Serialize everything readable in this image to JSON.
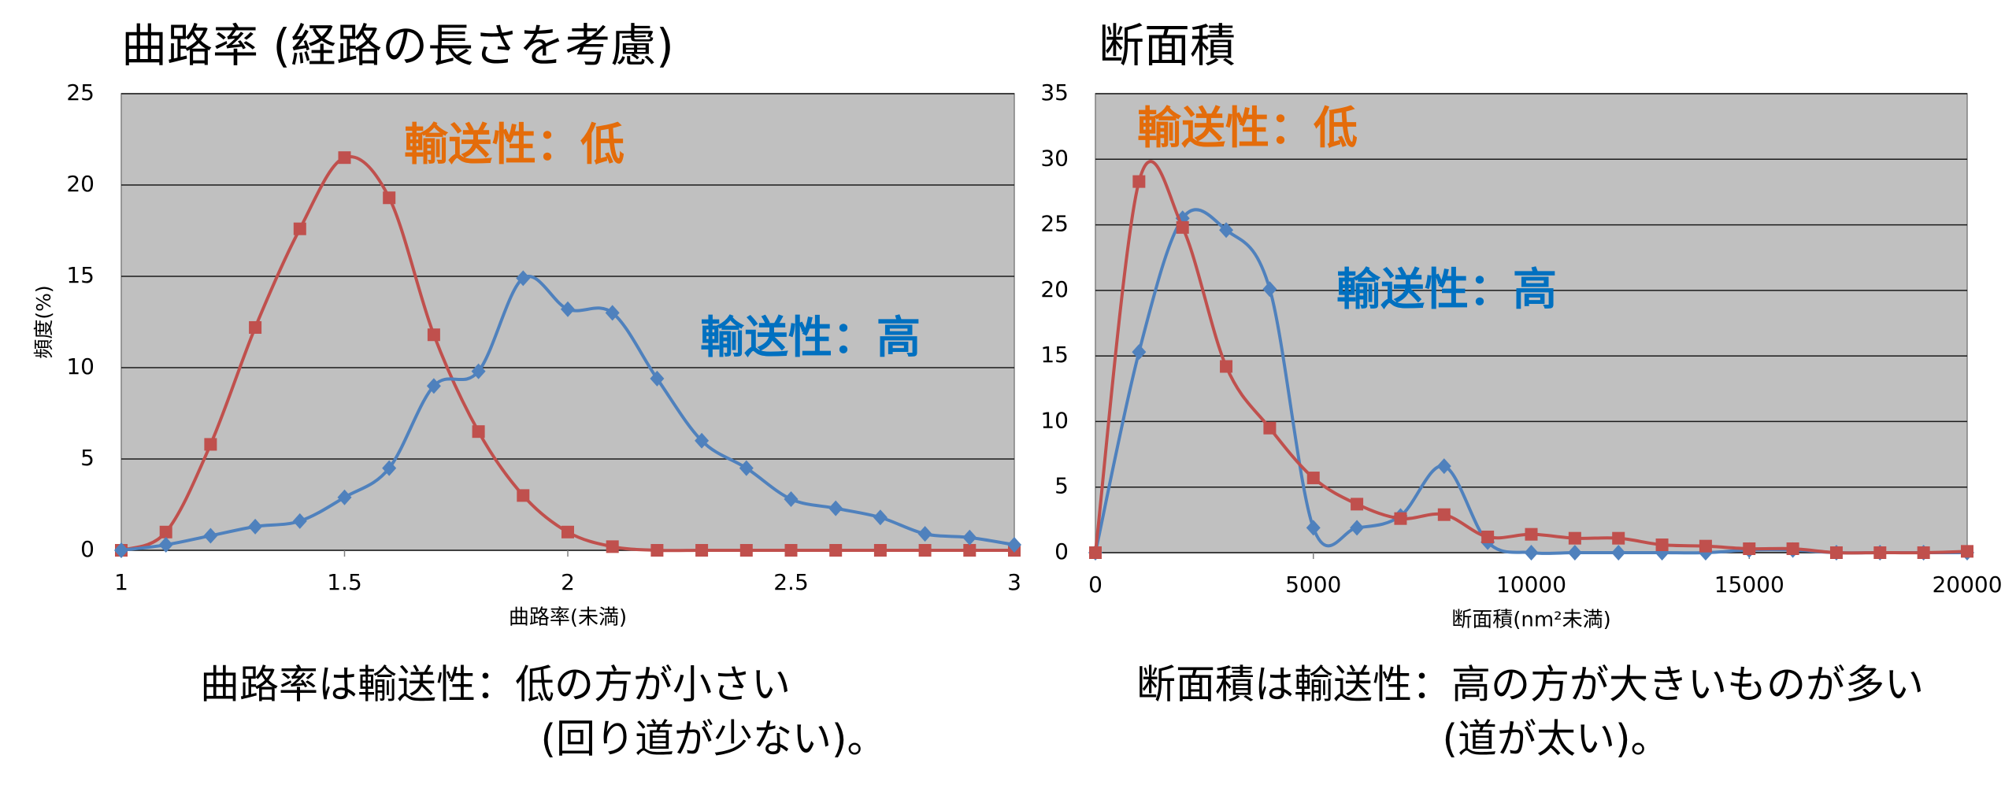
{
  "chart_data": [
    {
      "type": "line",
      "title": "曲路率 (経路の長さを考慮)",
      "y_label": "頻度(%)",
      "x_label": "曲路率(未満)",
      "x": [
        1,
        1.1,
        1.2,
        1.3,
        1.4,
        1.5,
        1.6,
        1.7,
        1.8,
        1.9,
        2,
        2.1,
        2.2,
        2.3,
        2.4,
        2.5,
        2.6,
        2.7,
        2.8,
        2.9,
        3
      ],
      "xlim": [
        1,
        3
      ],
      "xticks": [
        1,
        1.5,
        2,
        2.5,
        3
      ],
      "ylim": [
        0,
        25
      ],
      "yticks": [
        0,
        5,
        10,
        15,
        20,
        25
      ],
      "grid": true,
      "series": [
        {
          "name": "輸送性：低",
          "color": "#c0504d",
          "label_color": "#e46c0a",
          "marker": "square",
          "values": [
            0,
            1,
            5.8,
            12.2,
            17.6,
            21.5,
            19.3,
            11.8,
            6.5,
            3,
            1,
            0.2,
            0,
            0,
            0,
            0,
            0,
            0,
            0,
            0,
            0
          ]
        },
        {
          "name": "輸送性：高",
          "color": "#4f81bd",
          "label_color": "#0070c0",
          "marker": "diamond",
          "values": [
            0,
            0.3,
            0.8,
            1.3,
            1.6,
            2.9,
            4.5,
            9,
            9.8,
            14.9,
            13.2,
            13,
            9.4,
            6,
            4.5,
            2.8,
            2.3,
            1.8,
            0.9,
            0.7,
            0.3
          ]
        }
      ]
    },
    {
      "type": "line",
      "title": "断面積",
      "x_label": "断面積(nm²未満)",
      "x": [
        0,
        1000,
        2000,
        3000,
        4000,
        5000,
        6000,
        7000,
        8000,
        9000,
        10000,
        11000,
        12000,
        13000,
        14000,
        15000,
        16000,
        17000,
        18000,
        19000,
        20000
      ],
      "xlim": [
        0,
        20000
      ],
      "xticks": [
        0,
        5000,
        10000,
        15000,
        20000
      ],
      "ylim": [
        0,
        35
      ],
      "yticks": [
        0,
        5,
        10,
        15,
        20,
        25,
        30,
        35
      ],
      "grid": true,
      "series": [
        {
          "name": "輸送性：高",
          "color": "#4f81bd",
          "label_color": "#0070c0",
          "marker": "diamond",
          "values": [
            0,
            15.3,
            25.5,
            24.6,
            20.1,
            1.9,
            1.9,
            2.8,
            6.6,
            0.8,
            0,
            0,
            0,
            0,
            0,
            0.2,
            0.2,
            0,
            0,
            0,
            0
          ]
        },
        {
          "name": "輸送性：低",
          "color": "#c0504d",
          "label_color": "#e46c0a",
          "marker": "square",
          "values": [
            0,
            28.3,
            24.8,
            14.2,
            9.5,
            5.7,
            3.7,
            2.6,
            2.9,
            1.2,
            1.4,
            1.1,
            1.1,
            0.6,
            0.5,
            0.3,
            0.3,
            0,
            0,
            0,
            0.1
          ]
        }
      ]
    }
  ],
  "captions": [
    [
      "曲路率は輸送性：低の方が小さい",
      "(回り道が少ない)。"
    ],
    [
      "断面積は輸送性：高の方が大きいものが多い",
      "(道が太い)。"
    ]
  ]
}
